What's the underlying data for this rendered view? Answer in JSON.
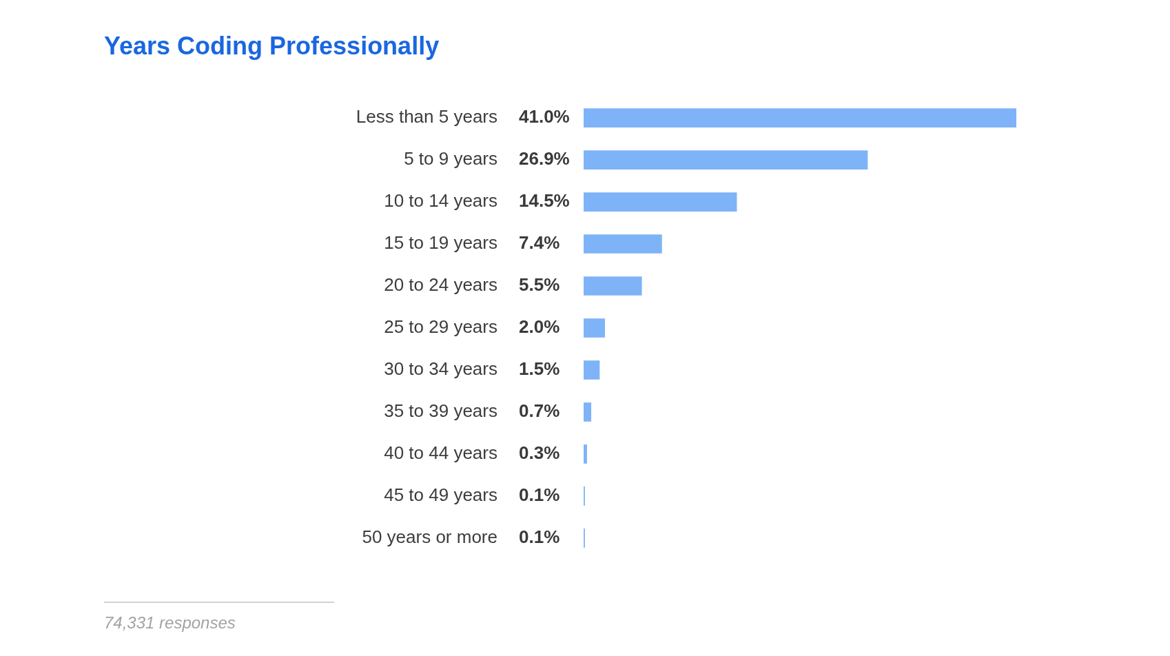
{
  "chart_data": {
    "type": "bar",
    "orientation": "horizontal",
    "title": "Years Coding Professionally",
    "categories": [
      "Less than 5 years",
      "5 to 9 years",
      "10 to 14 years",
      "15 to 19 years",
      "20 to 24 years",
      "25 to 29 years",
      "30 to 34 years",
      "35 to 39 years",
      "40 to 44 years",
      "45 to 49 years",
      "50 years or more"
    ],
    "values": [
      41.0,
      26.9,
      14.5,
      7.4,
      5.5,
      2.0,
      1.5,
      0.7,
      0.3,
      0.1,
      0.1
    ],
    "value_labels": [
      "41.0%",
      "26.9%",
      "14.5%",
      "7.4%",
      "5.5%",
      "2.0%",
      "1.5%",
      "0.7%",
      "0.3%",
      "0.1%",
      "0.1%"
    ],
    "color": "#7fb3f7",
    "tick_labels": "y",
    "grid": false,
    "legend": false,
    "annotations": [
      "74,331 responses"
    ]
  }
}
